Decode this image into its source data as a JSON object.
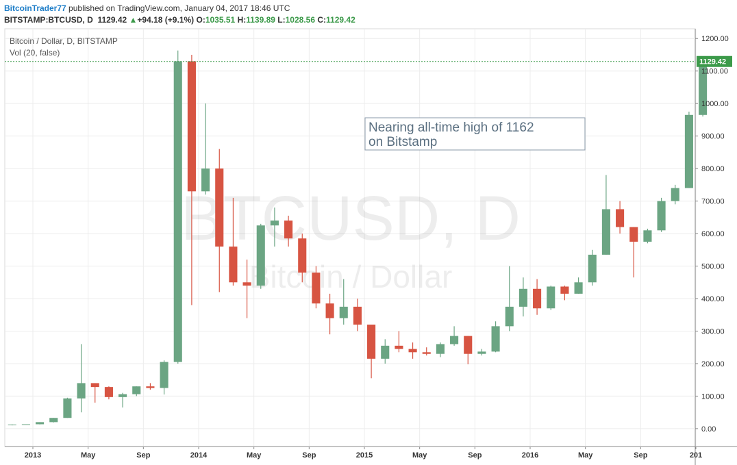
{
  "header": {
    "author": "BitcoinTrader77",
    "published": "published on TradingView.com, January 04, 2017 18:46 UTC",
    "symbol": "BITSTAMP:BTCUSD, D",
    "price": "1129.42",
    "change": "+94.18 (+9.1%)",
    "open_label": "O:",
    "open": "1035.51",
    "high_label": "H:",
    "high": "1139.89",
    "low_label": "L:",
    "low": "1028.56",
    "close_label": "C:",
    "close": "1129.42"
  },
  "chart_data": {
    "type": "candlestick",
    "legend": "Bitcoin / Dollar, D, BITSTAMP",
    "indicator": "Vol (20, false)",
    "watermark": "BTCUSD, D",
    "watermark_sub": "Bitcoin / Dollar",
    "annotation": [
      "Nearing all-time high of 1162",
      "on Bitstamp"
    ],
    "up_color": "#6ba583",
    "down_color": "#d75442",
    "grid": true,
    "last": 1129.42,
    "ylim": [
      -55,
      1230
    ],
    "yticks": [
      {
        "value": 0,
        "label": "0.00"
      },
      {
        "value": 100,
        "label": "100.00"
      },
      {
        "value": 200,
        "label": "200.00"
      },
      {
        "value": 300,
        "label": "300.00"
      },
      {
        "value": 400,
        "label": "400.00"
      },
      {
        "value": 500,
        "label": "500.00"
      },
      {
        "value": 600,
        "label": "600.00"
      },
      {
        "value": 700,
        "label": "700.00"
      },
      {
        "value": 800,
        "label": "800.00"
      },
      {
        "value": 900,
        "label": "900.00"
      },
      {
        "value": 1000,
        "label": "1000.00"
      },
      {
        "value": 1100,
        "label": "1100.00"
      },
      {
        "value": 1200,
        "label": "1200.00"
      }
    ],
    "xticks": [
      {
        "value": "2013-01",
        "label": "2013"
      },
      {
        "value": "2013-05",
        "label": "May"
      },
      {
        "value": "2013-09",
        "label": "Sep"
      },
      {
        "value": "2014-01",
        "label": "2014"
      },
      {
        "value": "2014-05",
        "label": "May"
      },
      {
        "value": "2014-09",
        "label": "Sep"
      },
      {
        "value": "2015-01",
        "label": "2015"
      },
      {
        "value": "2015-05",
        "label": "May"
      },
      {
        "value": "2015-09",
        "label": "Sep"
      },
      {
        "value": "2016-01",
        "label": "2016"
      },
      {
        "value": "2016-05",
        "label": "May"
      },
      {
        "value": "2016-09",
        "label": "Sep"
      },
      {
        "value": "2017-01",
        "label": "201"
      }
    ],
    "x": [
      "2012-11",
      "2012-12",
      "2013-01",
      "2013-02",
      "2013-03",
      "2013-04",
      "2013-05",
      "2013-06",
      "2013-07",
      "2013-08",
      "2013-09",
      "2013-10",
      "2013-11",
      "2013-12",
      "2014-01",
      "2014-02",
      "2014-03",
      "2014-04",
      "2014-05",
      "2014-06",
      "2014-07",
      "2014-08",
      "2014-09",
      "2014-10",
      "2014-11",
      "2014-12",
      "2015-01",
      "2015-02",
      "2015-03",
      "2015-04",
      "2015-05",
      "2015-06",
      "2015-07",
      "2015-08",
      "2015-09",
      "2015-10",
      "2015-11",
      "2015-12",
      "2016-01",
      "2016-02",
      "2016-03",
      "2016-04",
      "2016-05",
      "2016-06",
      "2016-07",
      "2016-08",
      "2016-09",
      "2016-10",
      "2016-11",
      "2016-12",
      "2017-01"
    ],
    "open": [
      11,
      12.5,
      13.5,
      20,
      33,
      93,
      140,
      128,
      97,
      106,
      130,
      125,
      205,
      1130,
      730,
      800,
      560,
      450,
      440,
      625,
      640,
      585,
      480,
      385,
      340,
      375,
      320,
      215,
      255,
      245,
      235,
      230,
      260,
      285,
      230,
      237,
      315,
      375,
      430,
      370,
      437,
      415,
      450,
      535,
      675,
      620,
      575,
      610,
      700,
      740,
      965
    ],
    "high": [
      13,
      13.5,
      20,
      33,
      95,
      260,
      140,
      130,
      110,
      130,
      140,
      210,
      1163,
      1150,
      1000,
      860,
      710,
      520,
      630,
      680,
      655,
      600,
      500,
      415,
      460,
      400,
      320,
      275,
      300,
      265,
      250,
      265,
      315,
      285,
      245,
      330,
      500,
      465,
      460,
      440,
      440,
      465,
      550,
      780,
      700,
      620,
      615,
      710,
      750,
      975,
      1139.89
    ],
    "low": [
      10,
      12,
      13,
      19,
      33,
      50,
      80,
      90,
      65,
      100,
      120,
      105,
      200,
      380,
      720,
      420,
      440,
      340,
      430,
      560,
      560,
      450,
      370,
      290,
      320,
      300,
      155,
      200,
      235,
      215,
      225,
      220,
      255,
      198,
      225,
      235,
      300,
      345,
      350,
      365,
      395,
      415,
      440,
      535,
      600,
      465,
      570,
      605,
      690,
      740,
      960
    ],
    "close": [
      12.5,
      13.5,
      20,
      33,
      93,
      140,
      128,
      97,
      106,
      130,
      125,
      205,
      1130,
      730,
      800,
      560,
      450,
      440,
      625,
      640,
      585,
      480,
      385,
      340,
      375,
      320,
      215,
      255,
      245,
      235,
      230,
      260,
      285,
      230,
      237,
      315,
      375,
      430,
      370,
      437,
      415,
      450,
      535,
      675,
      620,
      575,
      610,
      700,
      740,
      965,
      1129.42
    ]
  }
}
